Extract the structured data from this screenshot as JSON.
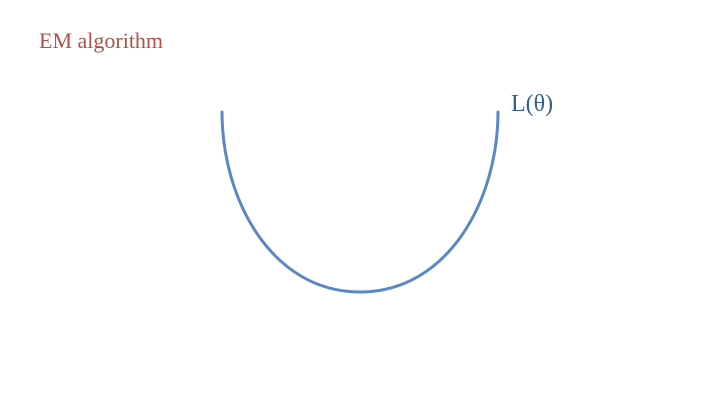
{
  "slide": {
    "title": "EM algorithm",
    "curve_label": "L(θ)"
  },
  "colors": {
    "title": "#B0504A",
    "curve": "#5B88C4",
    "curve_label": "#355E98",
    "background": "#FFFFFF"
  }
}
